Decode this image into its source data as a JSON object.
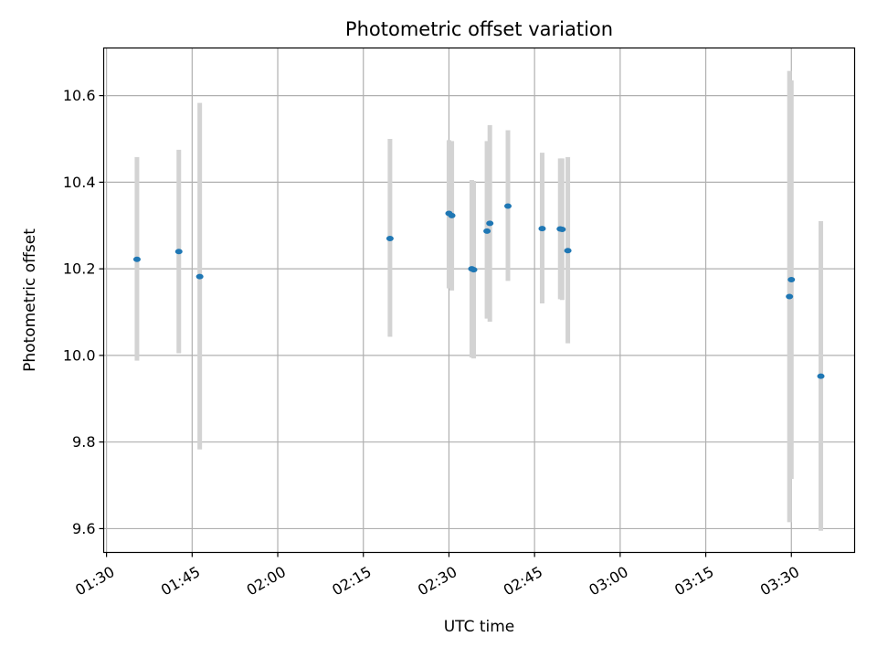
{
  "chart_data": {
    "type": "scatter",
    "title": "Photometric offset variation",
    "xlabel": "UTC time",
    "ylabel": "Photometric offset",
    "x_ticks": [
      "01:30",
      "01:45",
      "02:00",
      "02:15",
      "02:30",
      "02:45",
      "03:00",
      "03:15",
      "03:30"
    ],
    "y_ticks": [
      "9.6",
      "9.8",
      "10.0",
      "10.2",
      "10.4",
      "10.6"
    ],
    "xlim": [
      "01:29:30",
      "03:41:05"
    ],
    "ylim": [
      9.545,
      10.71
    ],
    "grid": true,
    "points": [
      {
        "x": "01:35:20",
        "y": 10.222,
        "ylow": 9.988,
        "yhigh": 10.458
      },
      {
        "x": "01:42:40",
        "y": 10.24,
        "ylow": 10.005,
        "yhigh": 10.475
      },
      {
        "x": "01:46:20",
        "y": 10.182,
        "ylow": 9.783,
        "yhigh": 10.583
      },
      {
        "x": "02:19:40",
        "y": 10.27,
        "ylow": 10.043,
        "yhigh": 10.5
      },
      {
        "x": "02:30:00",
        "y": 10.328,
        "ylow": 10.155,
        "yhigh": 10.497
      },
      {
        "x": "02:30:30",
        "y": 10.323,
        "ylow": 10.15,
        "yhigh": 10.495
      },
      {
        "x": "02:34:00",
        "y": 10.2,
        "ylow": 9.995,
        "yhigh": 10.405
      },
      {
        "x": "02:34:20",
        "y": 10.198,
        "ylow": 9.993,
        "yhigh": 10.403
      },
      {
        "x": "02:36:40",
        "y": 10.287,
        "ylow": 10.085,
        "yhigh": 10.495
      },
      {
        "x": "02:37:10",
        "y": 10.305,
        "ylow": 10.078,
        "yhigh": 10.532
      },
      {
        "x": "02:40:20",
        "y": 10.345,
        "ylow": 10.172,
        "yhigh": 10.52
      },
      {
        "x": "02:46:20",
        "y": 10.293,
        "ylow": 10.12,
        "yhigh": 10.468
      },
      {
        "x": "02:49:30",
        "y": 10.292,
        "ylow": 10.13,
        "yhigh": 10.455
      },
      {
        "x": "02:49:50",
        "y": 10.291,
        "ylow": 10.128,
        "yhigh": 10.455
      },
      {
        "x": "02:50:50",
        "y": 10.242,
        "ylow": 10.028,
        "yhigh": 10.458
      },
      {
        "x": "03:29:40",
        "y": 10.136,
        "ylow": 9.615,
        "yhigh": 10.657
      },
      {
        "x": "03:30:00",
        "y": 10.175,
        "ylow": 9.715,
        "yhigh": 10.635
      },
      {
        "x": "03:35:10",
        "y": 9.952,
        "ylow": 9.595,
        "yhigh": 10.31
      }
    ],
    "colors": {
      "marker": "#1f77b4",
      "errorbar": "#d3d3d3",
      "grid": "#b0b0b0",
      "axes": "#000000"
    }
  }
}
